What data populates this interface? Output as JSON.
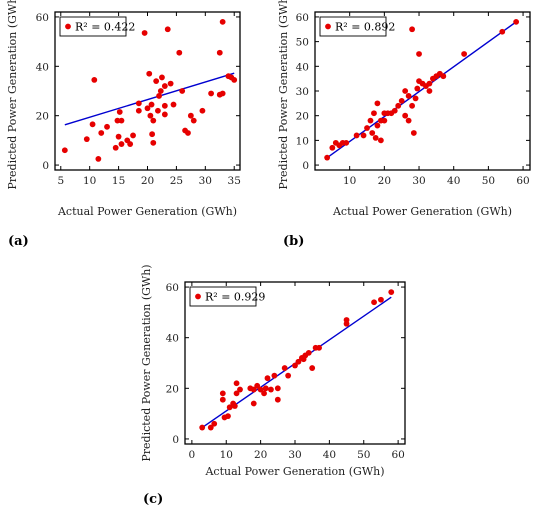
{
  "chart_data": [
    {
      "panel_label": "(a)",
      "type": "scatter",
      "xlabel": "Actual Power Generation (GWh)",
      "ylabel": "Predicted Power Generation (GWh)",
      "xlim": [
        4,
        36
      ],
      "ylim": [
        -2,
        62
      ],
      "xticks": [
        5,
        10,
        15,
        20,
        25,
        30,
        35
      ],
      "yticks": [
        0,
        20,
        40,
        60
      ],
      "legend": {
        "label": "R² = 0.422",
        "location": "top-left"
      },
      "fit_line": [
        [
          5.7,
          16.3
        ],
        [
          35,
          37.2
        ]
      ],
      "points": [
        [
          5.7,
          6
        ],
        [
          9.5,
          10.5
        ],
        [
          10.5,
          16.5
        ],
        [
          10.8,
          34.5
        ],
        [
          11.5,
          2.5
        ],
        [
          12,
          13
        ],
        [
          13,
          15.5
        ],
        [
          14.5,
          7
        ],
        [
          14.8,
          18
        ],
        [
          15,
          11.5
        ],
        [
          15.2,
          21.5
        ],
        [
          15.5,
          18
        ],
        [
          15.5,
          8.5
        ],
        [
          16.5,
          10
        ],
        [
          17,
          8.5
        ],
        [
          17.5,
          12
        ],
        [
          18.5,
          25
        ],
        [
          18.5,
          22
        ],
        [
          19.5,
          53.5
        ],
        [
          20,
          23
        ],
        [
          20.3,
          37
        ],
        [
          20.5,
          20
        ],
        [
          20.7,
          24.5
        ],
        [
          20.8,
          12.5
        ],
        [
          21,
          9
        ],
        [
          21,
          18
        ],
        [
          21.5,
          34
        ],
        [
          21.8,
          22
        ],
        [
          22,
          28
        ],
        [
          22.3,
          30
        ],
        [
          22.5,
          35.5
        ],
        [
          23,
          20.5
        ],
        [
          23,
          24
        ],
        [
          23,
          32
        ],
        [
          23.5,
          55
        ],
        [
          24,
          33
        ],
        [
          24.5,
          24.5
        ],
        [
          25.5,
          45.5
        ],
        [
          26,
          30
        ],
        [
          26.5,
          14
        ],
        [
          27,
          13
        ],
        [
          27.5,
          20
        ],
        [
          28,
          18
        ],
        [
          29.5,
          22
        ],
        [
          31,
          29
        ],
        [
          32.5,
          45.5
        ],
        [
          32.5,
          28.5
        ],
        [
          33,
          58
        ],
        [
          33,
          29
        ],
        [
          34,
          36
        ],
        [
          34.5,
          35.5
        ],
        [
          35,
          34.5
        ]
      ]
    },
    {
      "panel_label": "(b)",
      "type": "scatter",
      "xlabel": "Actual Power Generation (GWh)",
      "ylabel": "Predicted Power Generation (GWh)",
      "xlim": [
        0,
        62
      ],
      "ylim": [
        -2,
        62
      ],
      "xticks": [
        10,
        20,
        30,
        40,
        50,
        60
      ],
      "yticks": [
        0,
        10,
        20,
        30,
        40,
        50,
        60
      ],
      "legend": {
        "label": "R² = 0.892",
        "location": "top-left"
      },
      "fit_line": [
        [
          3.5,
          3
        ],
        [
          58,
          58
        ]
      ],
      "points": [
        [
          3.5,
          3
        ],
        [
          5,
          7
        ],
        [
          6,
          9
        ],
        [
          7,
          8
        ],
        [
          8,
          9
        ],
        [
          9,
          9
        ],
        [
          12,
          12
        ],
        [
          14,
          12
        ],
        [
          15,
          15
        ],
        [
          16,
          18
        ],
        [
          16.5,
          13
        ],
        [
          17,
          21
        ],
        [
          17.5,
          11
        ],
        [
          18,
          16
        ],
        [
          18,
          25
        ],
        [
          19,
          18
        ],
        [
          19,
          10
        ],
        [
          20,
          21
        ],
        [
          20,
          18
        ],
        [
          21,
          21
        ],
        [
          22,
          21
        ],
        [
          23,
          22
        ],
        [
          24,
          24
        ],
        [
          25,
          26
        ],
        [
          26,
          20
        ],
        [
          26,
          30
        ],
        [
          27,
          28
        ],
        [
          27,
          18
        ],
        [
          28,
          24
        ],
        [
          28,
          55
        ],
        [
          28.5,
          13
        ],
        [
          29,
          27
        ],
        [
          29.5,
          31
        ],
        [
          30,
          45
        ],
        [
          30,
          34
        ],
        [
          31,
          33
        ],
        [
          32,
          32
        ],
        [
          33,
          33
        ],
        [
          33,
          30
        ],
        [
          34,
          35
        ],
        [
          35,
          36
        ],
        [
          36,
          37
        ],
        [
          37,
          36
        ],
        [
          43,
          45
        ],
        [
          54,
          54
        ],
        [
          58,
          58
        ]
      ]
    },
    {
      "panel_label": "(c)",
      "type": "scatter",
      "xlabel": "Actual Power Generation (GWh)",
      "ylabel": "Predicted Power Generation (GWh)",
      "xlim": [
        -2,
        62
      ],
      "ylim": [
        -2,
        62
      ],
      "xticks": [
        0,
        10,
        20,
        30,
        40,
        50,
        60
      ],
      "yticks": [
        0,
        20,
        40,
        60
      ],
      "legend": {
        "label": "R² = 0.929",
        "location": "top-left"
      },
      "fit_line": [
        [
          3,
          4.5
        ],
        [
          58,
          56
        ]
      ],
      "points": [
        [
          3,
          4.5
        ],
        [
          5.5,
          4.5
        ],
        [
          6.5,
          6
        ],
        [
          9,
          15.5
        ],
        [
          9,
          18
        ],
        [
          9.5,
          8.5
        ],
        [
          10.5,
          9
        ],
        [
          11,
          12.5
        ],
        [
          12,
          14
        ],
        [
          12.5,
          13
        ],
        [
          13,
          18
        ],
        [
          13,
          22
        ],
        [
          14,
          19.5
        ],
        [
          17,
          20
        ],
        [
          18,
          14
        ],
        [
          18,
          19.5
        ],
        [
          19,
          21
        ],
        [
          20,
          19.5
        ],
        [
          21,
          18
        ],
        [
          21.5,
          20
        ],
        [
          22,
          24
        ],
        [
          23,
          19.5
        ],
        [
          24,
          25
        ],
        [
          25,
          15.5
        ],
        [
          25,
          20
        ],
        [
          27,
          28
        ],
        [
          28,
          25
        ],
        [
          30,
          29
        ],
        [
          31,
          30.5
        ],
        [
          32,
          32
        ],
        [
          32.5,
          31.5
        ],
        [
          33,
          33
        ],
        [
          34,
          34
        ],
        [
          35,
          28
        ],
        [
          36,
          36
        ],
        [
          37,
          36
        ],
        [
          45,
          47
        ],
        [
          45,
          45.5
        ],
        [
          53,
          54
        ],
        [
          55,
          55
        ],
        [
          58,
          58
        ]
      ]
    }
  ]
}
